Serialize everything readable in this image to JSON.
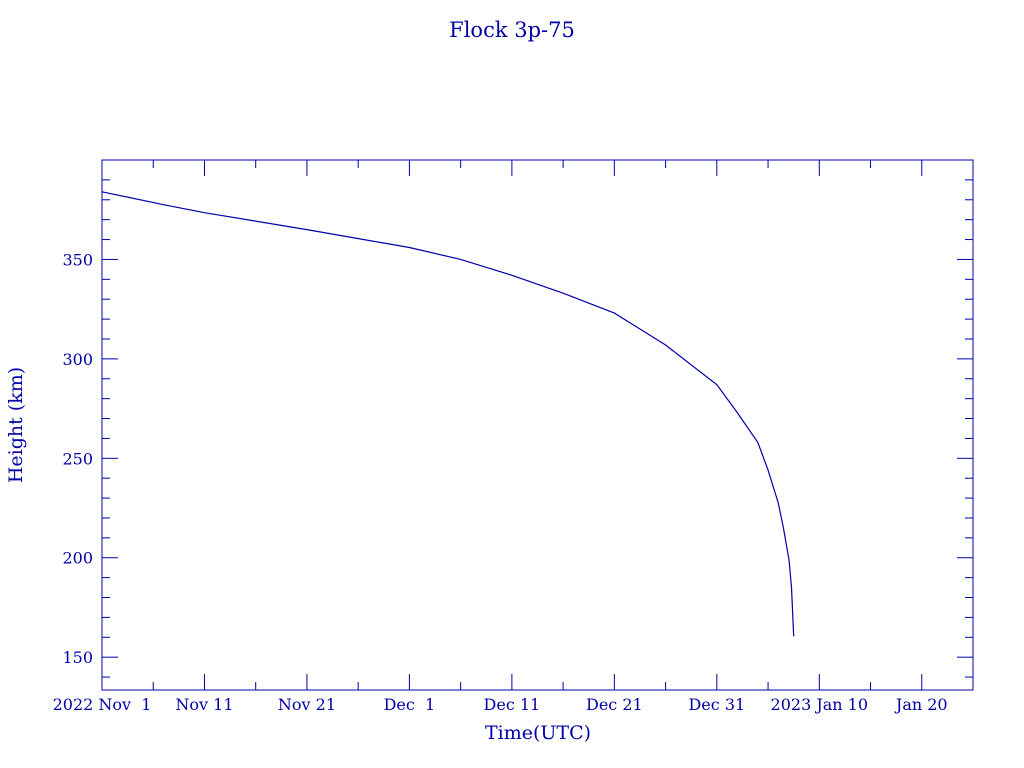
{
  "chart_data": {
    "type": "line",
    "title": "Flock 3p-75",
    "xlabel": "Time(UTC)",
    "ylabel": "Height (km)",
    "xlim": [
      "2022-11-01T00:00",
      "2023-01-25T00:00"
    ],
    "ylim": [
      133.5,
      400
    ],
    "x_ticks": [
      {
        "date": "2022-11-01",
        "label": "2022 Nov  1"
      },
      {
        "date": "2022-11-11",
        "label": "Nov 11"
      },
      {
        "date": "2022-11-21",
        "label": "Nov 21"
      },
      {
        "date": "2022-12-01",
        "label": "Dec  1"
      },
      {
        "date": "2022-12-11",
        "label": "Dec 11"
      },
      {
        "date": "2022-12-21",
        "label": "Dec 21"
      },
      {
        "date": "2022-12-31",
        "label": "Dec 31"
      },
      {
        "date": "2023-01-10",
        "label": "2023 Jan 10"
      },
      {
        "date": "2023-01-20",
        "label": "Jan 20"
      }
    ],
    "y_ticks": [
      150,
      200,
      250,
      300,
      350
    ],
    "grid": false,
    "color": "#0000a8",
    "series": [
      {
        "x": [
          "2022-11-01T00:00",
          "2022-11-07T00:00",
          "2022-11-11T00:00",
          "2022-11-21T00:00",
          "2022-12-01T00:00",
          "2022-12-06T00:00",
          "2022-12-11T00:00",
          "2022-12-16T00:00",
          "2022-12-21T00:00",
          "2022-12-26T00:00",
          "2022-12-31T00:00",
          "2023-01-02T00:00",
          "2023-01-04T00:00",
          "2023-01-05T00:00",
          "2023-01-06T00:00",
          "2023-01-06T12:00",
          "2023-01-07T01:00",
          "2023-01-07T07:00",
          "2023-01-07T12:00"
        ],
        "y": [
          384,
          377.5,
          373.5,
          365,
          356,
          350,
          342,
          333,
          323,
          307,
          287,
          273,
          258,
          244,
          227.5,
          215,
          199,
          185,
          160.5
        ]
      }
    ]
  }
}
